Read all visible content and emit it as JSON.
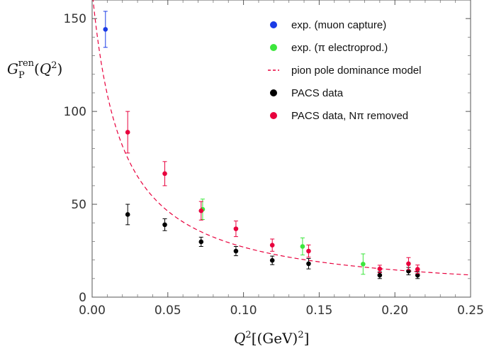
{
  "chart_data": {
    "type": "scatter",
    "xlabel": "Q²[(GeV)²]",
    "ylabel": "G_P^ren(Q²)",
    "xlim": [
      0.0,
      0.25
    ],
    "ylim": [
      0,
      160
    ],
    "x_ticks": [
      "0.00",
      "0.05",
      "0.10",
      "0.15",
      "0.20",
      "0.25"
    ],
    "y_ticks": [
      "0",
      "50",
      "100",
      "150"
    ],
    "legend_position": "top-right",
    "series": [
      {
        "name": "exp. (muon capture)",
        "color": "#1a3be6",
        "points": [
          {
            "x": 0.0088,
            "y": 144.2,
            "err": 9.7
          }
        ]
      },
      {
        "name": "exp. (π electroprod.)",
        "color": "#3ce63c",
        "points": [
          {
            "x": 0.073,
            "y": 47.3,
            "err": 5.5
          },
          {
            "x": 0.139,
            "y": 27.3,
            "err": 4.6
          },
          {
            "x": 0.179,
            "y": 17.8,
            "err": 5.5
          }
        ]
      },
      {
        "name": "pion pole dominance model",
        "color": "#e8003d",
        "style": "dashed",
        "curve": {
          "x": [
            0.0,
            0.0088,
            0.0235,
            0.048,
            0.072,
            0.095,
            0.119,
            0.143,
            0.19,
            0.209,
            0.215,
            0.25
          ],
          "y": [
            170,
            144.5,
            94.2,
            64,
            49,
            39.5,
            32.8,
            27.9,
            21.4,
            19.5,
            19.0,
            16.5
          ]
        }
      },
      {
        "name": "PACS data",
        "color": "#000000",
        "points": [
          {
            "x": 0.0235,
            "y": 44.5,
            "err": 5.5
          },
          {
            "x": 0.048,
            "y": 39.0,
            "err": 3.2
          },
          {
            "x": 0.072,
            "y": 29.8,
            "err": 2.5
          },
          {
            "x": 0.095,
            "y": 24.8,
            "err": 2.5
          },
          {
            "x": 0.119,
            "y": 19.8,
            "err": 2.3
          },
          {
            "x": 0.143,
            "y": 18.0,
            "err": 2.8
          },
          {
            "x": 0.19,
            "y": 11.8,
            "err": 1.8
          },
          {
            "x": 0.209,
            "y": 14.0,
            "err": 2.0
          },
          {
            "x": 0.215,
            "y": 11.8,
            "err": 1.8
          }
        ]
      },
      {
        "name": "PACS data, Nπ removed",
        "color": "#e8003d",
        "points": [
          {
            "x": 0.0235,
            "y": 88.8,
            "err": 11.2
          },
          {
            "x": 0.048,
            "y": 66.5,
            "err": 6.5
          },
          {
            "x": 0.072,
            "y": 46.5,
            "err": 5.0
          },
          {
            "x": 0.095,
            "y": 36.8,
            "err": 4.2
          },
          {
            "x": 0.119,
            "y": 28.0,
            "err": 3.3
          },
          {
            "x": 0.143,
            "y": 24.8,
            "err": 3.3
          },
          {
            "x": 0.19,
            "y": 15.2,
            "err": 2.0
          },
          {
            "x": 0.209,
            "y": 18.0,
            "err": 3.3
          },
          {
            "x": 0.215,
            "y": 15.0,
            "err": 2.3
          }
        ]
      }
    ]
  }
}
